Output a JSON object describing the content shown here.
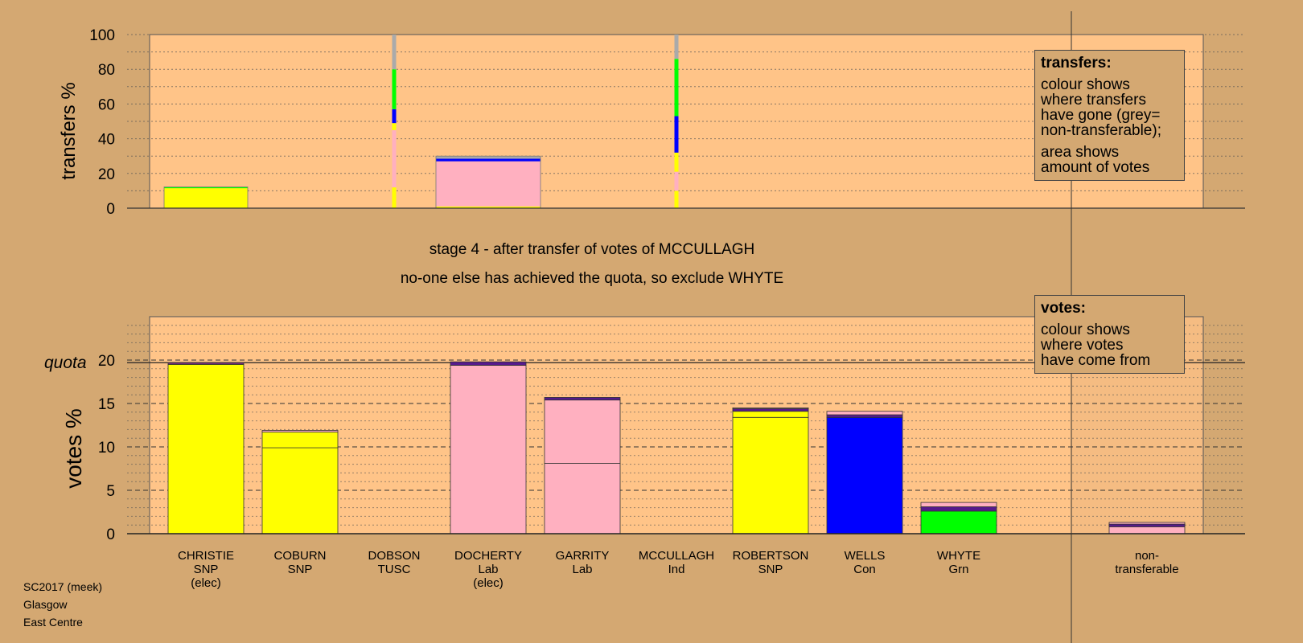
{
  "chart_data": {
    "type": "bar",
    "stage_title": "stage 4 - after transfer of votes of MCCULLAGH",
    "stage_note": "no-one else has achieved the quota, so exclude WHYTE",
    "top_chart": {
      "ylabel": "transfers %",
      "ylim": [
        0,
        100
      ],
      "yticks": [
        "0",
        "20",
        "40",
        "60",
        "80",
        "100"
      ],
      "legend": {
        "head": "transfers:",
        "lines1": [
          "colour shows",
          "where transfers",
          "have gone (grey=",
          "non-transferable);"
        ],
        "lines2": [
          "area shows",
          "amount of votes"
        ]
      },
      "transfer_bars": [
        {
          "candidate": "CHRISTIE",
          "width_share": 0.8,
          "segments": [
            {
              "color": "#ffff00",
              "value": 11.5
            },
            {
              "color": "#00ff00",
              "value": 0.7
            }
          ]
        },
        {
          "candidate": "DOCHERTY",
          "width_share": 1.0,
          "segments": [
            {
              "color": "#ffff00",
              "value": 1
            },
            {
              "color": "#ffb0c0",
              "value": 26
            },
            {
              "color": "#0000ff",
              "value": 1.5
            },
            {
              "color": "#aaaaaa",
              "value": 1.5
            }
          ]
        }
      ],
      "lines": [
        {
          "candidate": "DOBSON",
          "segments": [
            {
              "color": "#ffff00",
              "value": 12
            },
            {
              "color": "#ffb0c0",
              "value": 33
            },
            {
              "color": "#ffff00",
              "value": 4
            },
            {
              "color": "#0000ff",
              "value": 8
            },
            {
              "color": "#00ff00",
              "value": 23
            },
            {
              "color": "#aaaaaa",
              "value": 20
            }
          ]
        },
        {
          "candidate": "MCCULLAGH",
          "segments": [
            {
              "color": "#ffff00",
              "value": 10
            },
            {
              "color": "#ffb0c0",
              "value": 11
            },
            {
              "color": "#ffff00",
              "value": 11
            },
            {
              "color": "#0000ff",
              "value": 21
            },
            {
              "color": "#00ff00",
              "value": 33
            },
            {
              "color": "#aaaaaa",
              "value": 14
            }
          ]
        }
      ]
    },
    "bottom_chart": {
      "ylabel": "votes %",
      "ylim": [
        0,
        25
      ],
      "yticks": [
        "0",
        "5",
        "10",
        "15",
        "20"
      ],
      "quota_label": "quota",
      "quota": 19.7,
      "legend": {
        "head": "votes:",
        "lines": [
          "colour shows",
          "where votes",
          "have come from"
        ]
      },
      "bars": [
        {
          "candidate": "CHRISTIE",
          "segments": [
            {
              "color": "#ffff00",
              "value": 19.5
            },
            {
              "color": "#7a2a7a",
              "value": 0.2
            }
          ]
        },
        {
          "candidate": "COBURN",
          "segments": [
            {
              "color": "#ffff00",
              "value": 9.9
            },
            {
              "color": "#ffff00",
              "value": 1.8
            },
            {
              "color": "#ffb0c0",
              "value": 0.2
            }
          ]
        },
        {
          "candidate": "DOBSON",
          "segments": []
        },
        {
          "candidate": "DOCHERTY",
          "segments": [
            {
              "color": "#ffb0c0",
              "value": 19.4
            },
            {
              "color": "#551a8b",
              "value": 0.4
            }
          ]
        },
        {
          "candidate": "GARRITY",
          "segments": [
            {
              "color": "#ffb0c0",
              "value": 8.1
            },
            {
              "color": "#ffb0c0",
              "value": 7.3
            },
            {
              "color": "#551a8b",
              "value": 0.3
            }
          ]
        },
        {
          "candidate": "MCCULLAGH",
          "segments": []
        },
        {
          "candidate": "ROBERTSON",
          "segments": [
            {
              "color": "#ffff00",
              "value": 13.4
            },
            {
              "color": "#ffff00",
              "value": 0.7
            },
            {
              "color": "#551a8b",
              "value": 0.3
            },
            {
              "color": "#ffb0c0",
              "value": 0.1
            }
          ]
        },
        {
          "candidate": "WELLS",
          "segments": [
            {
              "color": "#0000ff",
              "value": 13.4
            },
            {
              "color": "#551a8b",
              "value": 0.3
            },
            {
              "color": "#ffb0c0",
              "value": 0.4
            }
          ]
        },
        {
          "candidate": "WHYTE",
          "segments": [
            {
              "color": "#00ff00",
              "value": 2.6
            },
            {
              "color": "#551a8b",
              "value": 0.5
            },
            {
              "color": "#ffb0c0",
              "value": 0.5
            }
          ]
        },
        {
          "candidate": "non-transferable",
          "segments": [
            {
              "color": "#ffb0c0",
              "value": 0.8
            },
            {
              "color": "#551a8b",
              "value": 0.3
            },
            {
              "color": "#ffb0c0",
              "value": 0.2
            }
          ]
        }
      ]
    }
  },
  "candidates": [
    {
      "name": "CHRISTIE",
      "party": "SNP",
      "note": "(elec)"
    },
    {
      "name": "COBURN",
      "party": "SNP",
      "note": ""
    },
    {
      "name": "DOBSON",
      "party": "TUSC",
      "note": ""
    },
    {
      "name": "DOCHERTY",
      "party": "Lab",
      "note": "(elec)"
    },
    {
      "name": "GARRITY",
      "party": "Lab",
      "note": ""
    },
    {
      "name": "MCCULLAGH",
      "party": "Ind",
      "note": ""
    },
    {
      "name": "ROBERTSON",
      "party": "SNP",
      "note": ""
    },
    {
      "name": "WELLS",
      "party": "Con",
      "note": ""
    },
    {
      "name": "WHYTE",
      "party": "Grn",
      "note": ""
    }
  ],
  "nontransferable": {
    "line1": "non-",
    "line2": "transferable"
  },
  "footer": [
    "SC2017 (meek)",
    "Glasgow",
    "East Centre"
  ]
}
